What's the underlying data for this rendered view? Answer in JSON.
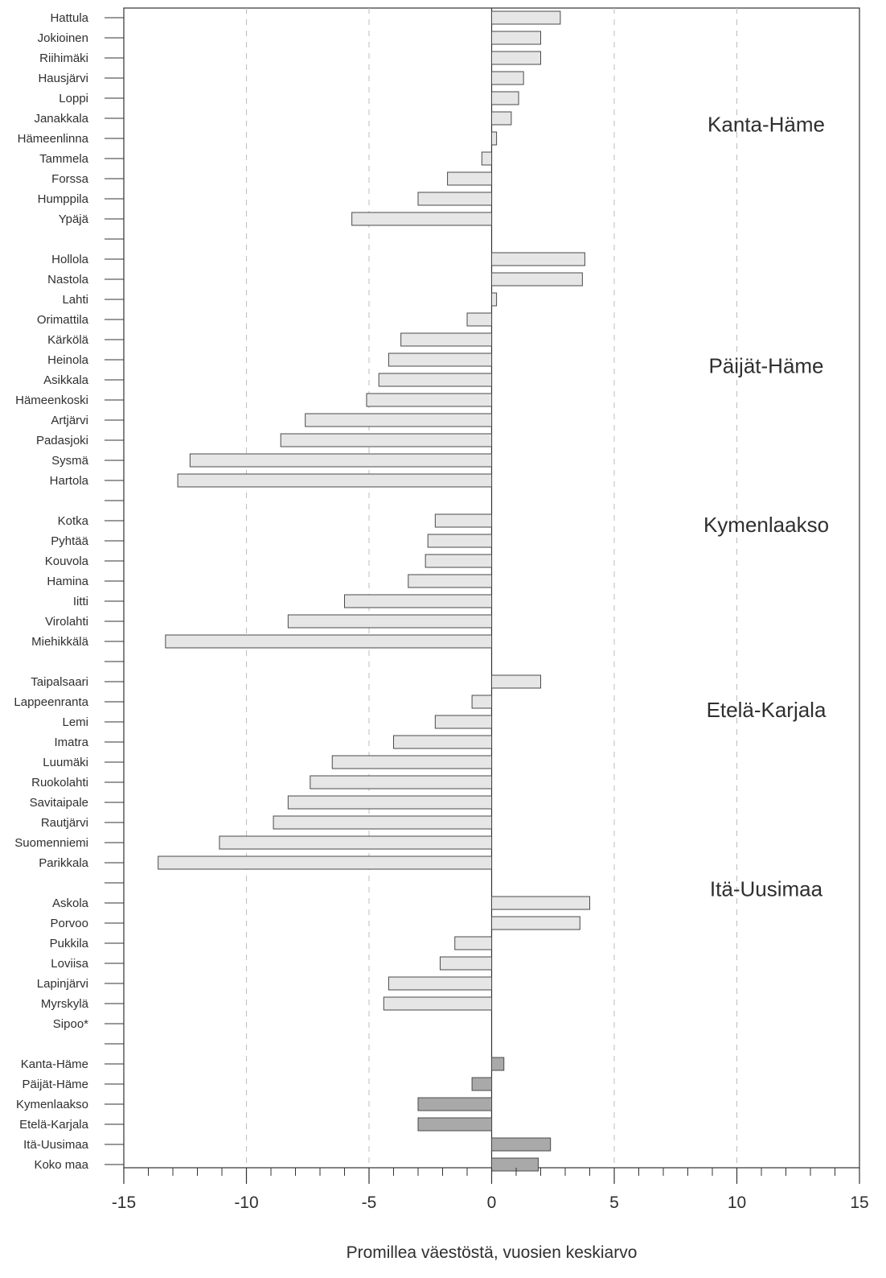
{
  "chart_data": {
    "type": "bar",
    "orientation": "horizontal",
    "xlabel": "Promillea väestöstä, vuosien keskiarvo",
    "xlim": [
      -15,
      15
    ],
    "x_ticks": [
      -15,
      -10,
      -5,
      0,
      5,
      10,
      15
    ],
    "x_tick_labels": [
      "-15",
      "-10",
      "-5",
      "0",
      "5",
      "10",
      "15"
    ],
    "minor_tick_step": 1,
    "grid": "vertical dashed at -10, -5, 5, 10",
    "colors": {
      "municipality_bar": "#e6e6e6",
      "region_bar": "#a9a9a9",
      "bar_edge": "#4a4a4a",
      "grid": "#bdbdbd",
      "axis": "#333333"
    },
    "categories": [
      "Hattula",
      "Jokioinen",
      "Riihimäki",
      "Hausjärvi",
      "Loppi",
      "Janakkala",
      "Hämeenlinna",
      "Tammela",
      "Forssa",
      "Humppila",
      "Ypäjä",
      "",
      "Hollola",
      "Nastola",
      "Lahti",
      "Orimattila",
      "Kärkölä",
      "Heinola",
      "Asikkala",
      "Hämeenkoski",
      "Artjärvi",
      "Padasjoki",
      "Sysmä",
      "Hartola",
      "",
      "Kotka",
      "Pyhtää",
      "Kouvola",
      "Hamina",
      "Iitti",
      "Virolahti",
      "Miehikkälä",
      "",
      "Taipalsaari",
      "Lappeenranta",
      "Lemi",
      "Imatra",
      "Luumäki",
      "Ruokolahti",
      "Savitaipale",
      "Rautjärvi",
      "Suomenniemi",
      "Parikkala",
      "",
      "Askola",
      "Porvoo",
      "Pukkila",
      "Loviisa",
      "Lapinjärvi",
      "Myrskylä",
      "Sipoo*",
      "",
      "Kanta-Häme",
      "Päijät-Häme",
      "Kymenlaakso",
      "Etelä-Karjala",
      "Itä-Uusimaa",
      "Koko maa"
    ],
    "series": [
      {
        "group": "municipalities",
        "values": [
          2.8,
          2.0,
          2.0,
          1.3,
          1.1,
          0.8,
          0.2,
          -0.4,
          -1.8,
          -3.0,
          -5.7,
          null,
          3.8,
          3.7,
          0.2,
          -1.0,
          -3.7,
          -4.2,
          -4.6,
          -5.1,
          -7.6,
          -8.6,
          -12.3,
          -12.8,
          null,
          -2.3,
          -2.6,
          -2.7,
          -3.4,
          -6.0,
          -8.3,
          -13.3,
          null,
          2.0,
          -0.8,
          -2.3,
          -4.0,
          -6.5,
          -7.4,
          -8.3,
          -8.9,
          -11.1,
          -13.6,
          null,
          4.0,
          3.6,
          -1.5,
          -2.1,
          -4.2,
          -4.4,
          null,
          null,
          null,
          null,
          null,
          null,
          null,
          null
        ]
      },
      {
        "group": "regions",
        "values": [
          null,
          null,
          null,
          null,
          null,
          null,
          null,
          null,
          null,
          null,
          null,
          null,
          null,
          null,
          null,
          null,
          null,
          null,
          null,
          null,
          null,
          null,
          null,
          null,
          null,
          null,
          null,
          null,
          null,
          null,
          null,
          null,
          null,
          null,
          null,
          null,
          null,
          null,
          null,
          null,
          null,
          null,
          null,
          null,
          null,
          null,
          null,
          null,
          null,
          null,
          null,
          null,
          0.5,
          -0.8,
          -3.0,
          -3.0,
          2.4,
          1.9
        ]
      }
    ],
    "annotations": [
      {
        "text": "Kanta-Häme",
        "row": 5.3
      },
      {
        "text": "Päijät-Häme",
        "row": 17.3
      },
      {
        "text": "Kymenlaakso",
        "row": 25.2
      },
      {
        "text": "Etelä-Karjala",
        "row": 34.4
      },
      {
        "text": "Itä-Uusimaa",
        "row": 43.3
      }
    ]
  }
}
